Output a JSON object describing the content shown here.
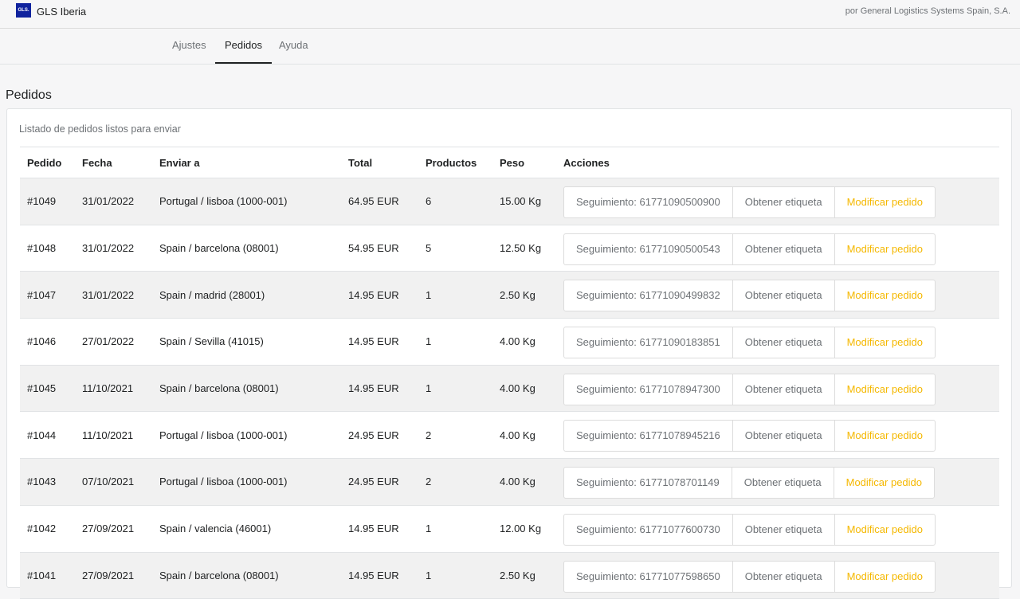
{
  "header": {
    "logo": "GLS.",
    "brand": "GLS Iberia",
    "byline": "por General Logistics Systems Spain, S.A."
  },
  "tabs": [
    {
      "label": "Ajustes",
      "active": false
    },
    {
      "label": "Pedidos",
      "active": true
    },
    {
      "label": "Ayuda",
      "active": false
    }
  ],
  "section": {
    "title": "Pedidos"
  },
  "card": {
    "subtitle": "Listado de pedidos listos para enviar"
  },
  "table": {
    "columns": [
      "Pedido",
      "Fecha",
      "Enviar a",
      "Total",
      "Productos",
      "Peso",
      "Acciones"
    ],
    "rows": [
      [
        "#1049",
        "31/01/2022",
        "Portugal / lisboa (1000-001)",
        "64.95 EUR",
        "6",
        "15.00 Kg",
        "Seguimiento: 61771090500900",
        "Obtener etiqueta",
        "Modificar pedido"
      ],
      [
        "#1048",
        "31/01/2022",
        "Spain / barcelona (08001)",
        "54.95 EUR",
        "5",
        "12.50 Kg",
        "Seguimiento: 61771090500543",
        "Obtener etiqueta",
        "Modificar pedido"
      ],
      [
        "#1047",
        "31/01/2022",
        "Spain / madrid (28001)",
        "14.95 EUR",
        "1",
        "2.50 Kg",
        "Seguimiento: 61771090499832",
        "Obtener etiqueta",
        "Modificar pedido"
      ],
      [
        "#1046",
        "27/01/2022",
        "Spain / Sevilla (41015)",
        "14.95 EUR",
        "1",
        "4.00 Kg",
        "Seguimiento: 61771090183851",
        "Obtener etiqueta",
        "Modificar pedido"
      ],
      [
        "#1045",
        "11/10/2021",
        "Spain / barcelona (08001)",
        "14.95 EUR",
        "1",
        "4.00 Kg",
        "Seguimiento: 61771078947300",
        "Obtener etiqueta",
        "Modificar pedido"
      ],
      [
        "#1044",
        "11/10/2021",
        "Portugal / lisboa (1000-001)",
        "24.95 EUR",
        "2",
        "4.00 Kg",
        "Seguimiento: 61771078945216",
        "Obtener etiqueta",
        "Modificar pedido"
      ],
      [
        "#1043",
        "07/10/2021",
        "Portugal / lisboa (1000-001)",
        "24.95 EUR",
        "2",
        "4.00 Kg",
        "Seguimiento: 61771078701149",
        "Obtener etiqueta",
        "Modificar pedido"
      ],
      [
        "#1042",
        "27/09/2021",
        "Spain / valencia (46001)",
        "14.95 EUR",
        "1",
        "12.00 Kg",
        "Seguimiento: 61771077600730",
        "Obtener etiqueta",
        "Modificar pedido"
      ],
      [
        "#1041",
        "27/09/2021",
        "Spain / barcelona (08001)",
        "14.95 EUR",
        "1",
        "2.50 Kg",
        "Seguimiento: 61771077598650",
        "Obtener etiqueta",
        "Modificar pedido"
      ]
    ]
  }
}
